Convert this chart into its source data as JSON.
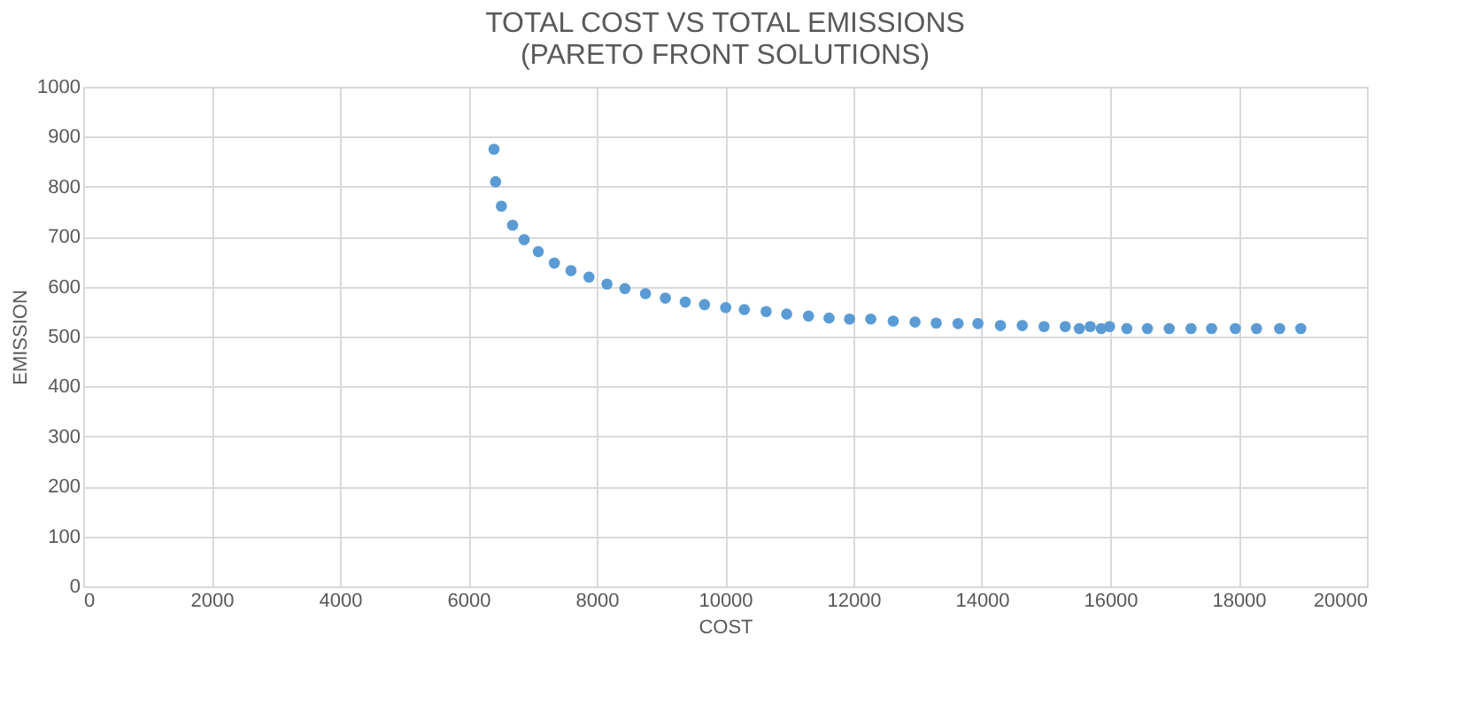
{
  "chart_data": {
    "type": "scatter",
    "title": "TOTAL COST VS TOTAL EMISSIONS\n(PARETO FRONT SOLUTIONS)",
    "xlabel": "COST",
    "ylabel": "EMISSION",
    "x": [
      6400,
      6425,
      6515,
      6690,
      6870,
      7090,
      7340,
      7600,
      7880,
      8160,
      8440,
      8760,
      9070,
      9380,
      9680,
      10010,
      10300,
      10640,
      10960,
      11300,
      11620,
      11940,
      12270,
      12620,
      12960,
      13290,
      13630,
      13940,
      14290,
      14630,
      14970,
      15300,
      15520,
      15690,
      15860,
      15990,
      16260,
      16580,
      16920,
      17260,
      17580,
      17950,
      18280,
      18640,
      18970
    ],
    "series": [
      {
        "color": "#5b9bd5",
        "values": [
          875,
          810,
          761,
          723,
          694,
          670,
          647,
          632,
          619,
          605,
          596,
          586,
          577,
          569,
          564,
          558,
          554,
          550,
          545,
          541,
          537,
          535,
          535,
          531,
          529,
          527,
          526,
          526,
          522,
          522,
          520,
          520,
          516,
          520,
          516,
          520,
          516,
          516,
          516,
          516,
          516,
          516,
          516,
          516,
          516
        ]
      }
    ],
    "xlim": [
      0,
      20000
    ],
    "xticks": [
      0,
      2000,
      4000,
      6000,
      8000,
      10000,
      12000,
      14000,
      16000,
      18000,
      20000
    ],
    "ylim": [
      0,
      1000
    ],
    "yticks": [
      0,
      100,
      200,
      300,
      400,
      500,
      600,
      700,
      800,
      900,
      1000
    ],
    "grid": true,
    "marker": "circle"
  }
}
